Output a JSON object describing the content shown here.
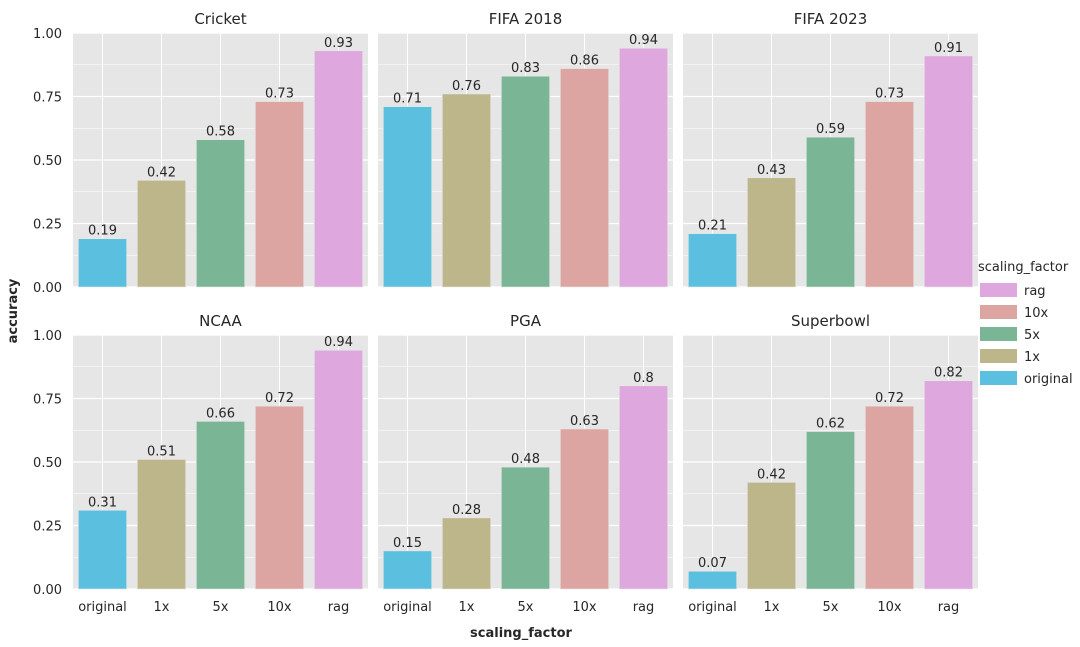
{
  "chart_data": {
    "type": "bar",
    "xlabel": "scaling_factor",
    "ylabel": "accuracy",
    "ylim": [
      0,
      1.0
    ],
    "yticks": [
      "0.00",
      "0.25",
      "0.50",
      "0.75",
      "1.00"
    ],
    "categories": [
      "original",
      "1x",
      "5x",
      "10x",
      "rag"
    ],
    "colors": {
      "original": "#5bbfe0",
      "1x": "#bcb68a",
      "5x": "#7ab695",
      "10x": "#dda5a2",
      "rag": "#dea8df"
    },
    "legend": {
      "title": "scaling_factor",
      "entries": [
        "rag",
        "10x",
        "5x",
        "1x",
        "original"
      ],
      "placement": "right"
    },
    "panels": [
      {
        "title": "Cricket",
        "values": [
          0.19,
          0.42,
          0.58,
          0.73,
          0.93
        ],
        "labels": [
          "0.19",
          "0.42",
          "0.58",
          "0.73",
          "0.93"
        ]
      },
      {
        "title": "FIFA 2018",
        "values": [
          0.71,
          0.76,
          0.83,
          0.86,
          0.94
        ],
        "labels": [
          "0.71",
          "0.76",
          "0.83",
          "0.86",
          "0.94"
        ]
      },
      {
        "title": "FIFA 2023",
        "values": [
          0.21,
          0.43,
          0.59,
          0.73,
          0.91
        ],
        "labels": [
          "0.21",
          "0.43",
          "0.59",
          "0.73",
          "0.91"
        ]
      },
      {
        "title": "NCAA",
        "values": [
          0.31,
          0.51,
          0.66,
          0.72,
          0.94
        ],
        "labels": [
          "0.31",
          "0.51",
          "0.66",
          "0.72",
          "0.94"
        ]
      },
      {
        "title": "PGA",
        "values": [
          0.15,
          0.28,
          0.48,
          0.63,
          0.8
        ],
        "labels": [
          "0.15",
          "0.28",
          "0.48",
          "0.63",
          "0.8"
        ]
      },
      {
        "title": "Superbowl",
        "values": [
          0.07,
          0.42,
          0.62,
          0.72,
          0.82
        ],
        "labels": [
          "0.07",
          "0.42",
          "0.62",
          "0.72",
          "0.82"
        ]
      }
    ]
  }
}
